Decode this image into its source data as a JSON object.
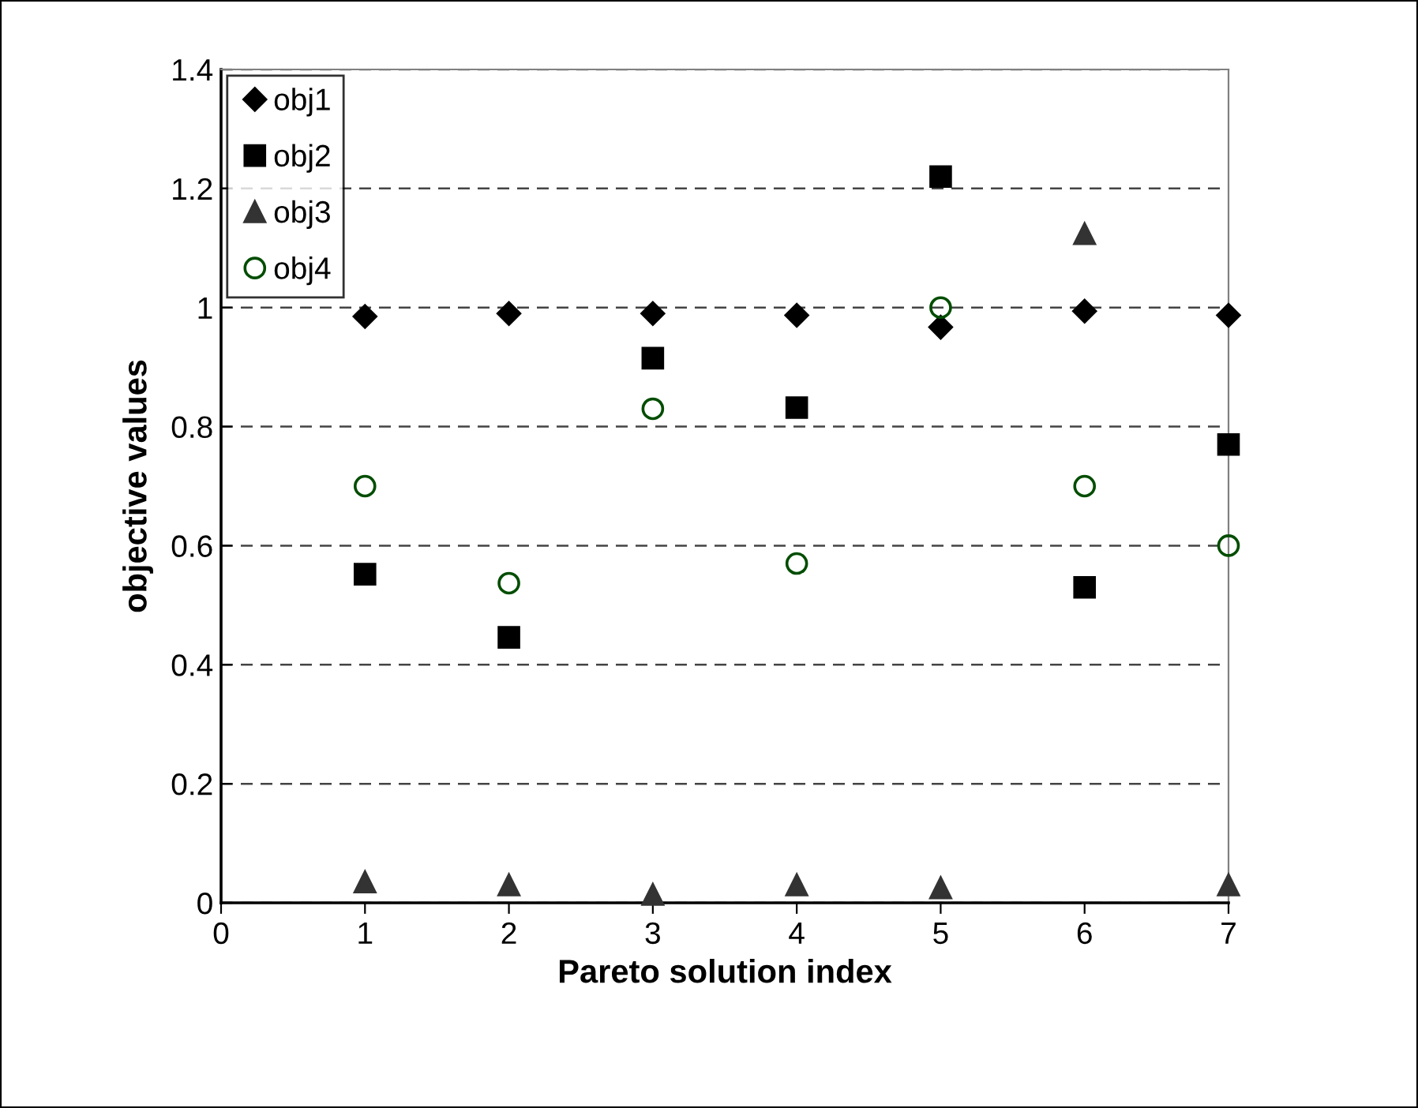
{
  "chart_data": {
    "type": "scatter",
    "xlabel": "Pareto solution index",
    "ylabel": "objective values",
    "x": [
      1,
      2,
      3,
      4,
      5,
      6,
      7
    ],
    "series": [
      {
        "name": "obj1",
        "color": "#000000",
        "marker": "diamond",
        "values": [
          0.985,
          0.99,
          0.99,
          0.987,
          0.967,
          0.994,
          0.987
        ]
      },
      {
        "name": "obj2",
        "color": "#000000",
        "marker": "square",
        "values": [
          0.552,
          0.446,
          0.915,
          0.832,
          1.22,
          0.53,
          0.77
        ]
      },
      {
        "name": "obj3",
        "color": "#333333",
        "marker": "triangle",
        "values": [
          0.035,
          0.03,
          0.014,
          0.03,
          0.025,
          1.124,
          0.03
        ]
      },
      {
        "name": "obj4",
        "color": "#004d00",
        "marker": "circle",
        "values": [
          0.7,
          0.537,
          0.83,
          0.57,
          1.0,
          0.7,
          0.6
        ]
      }
    ],
    "xlim": [
      0,
      7
    ],
    "xticks": [
      0,
      1,
      2,
      3,
      4,
      5,
      6,
      7
    ],
    "ylim": [
      0,
      1.4
    ],
    "yticks": [
      0,
      0.2,
      0.4,
      0.6,
      0.8,
      1,
      1.2,
      1.4
    ],
    "grid": "y",
    "legend": "top left"
  }
}
